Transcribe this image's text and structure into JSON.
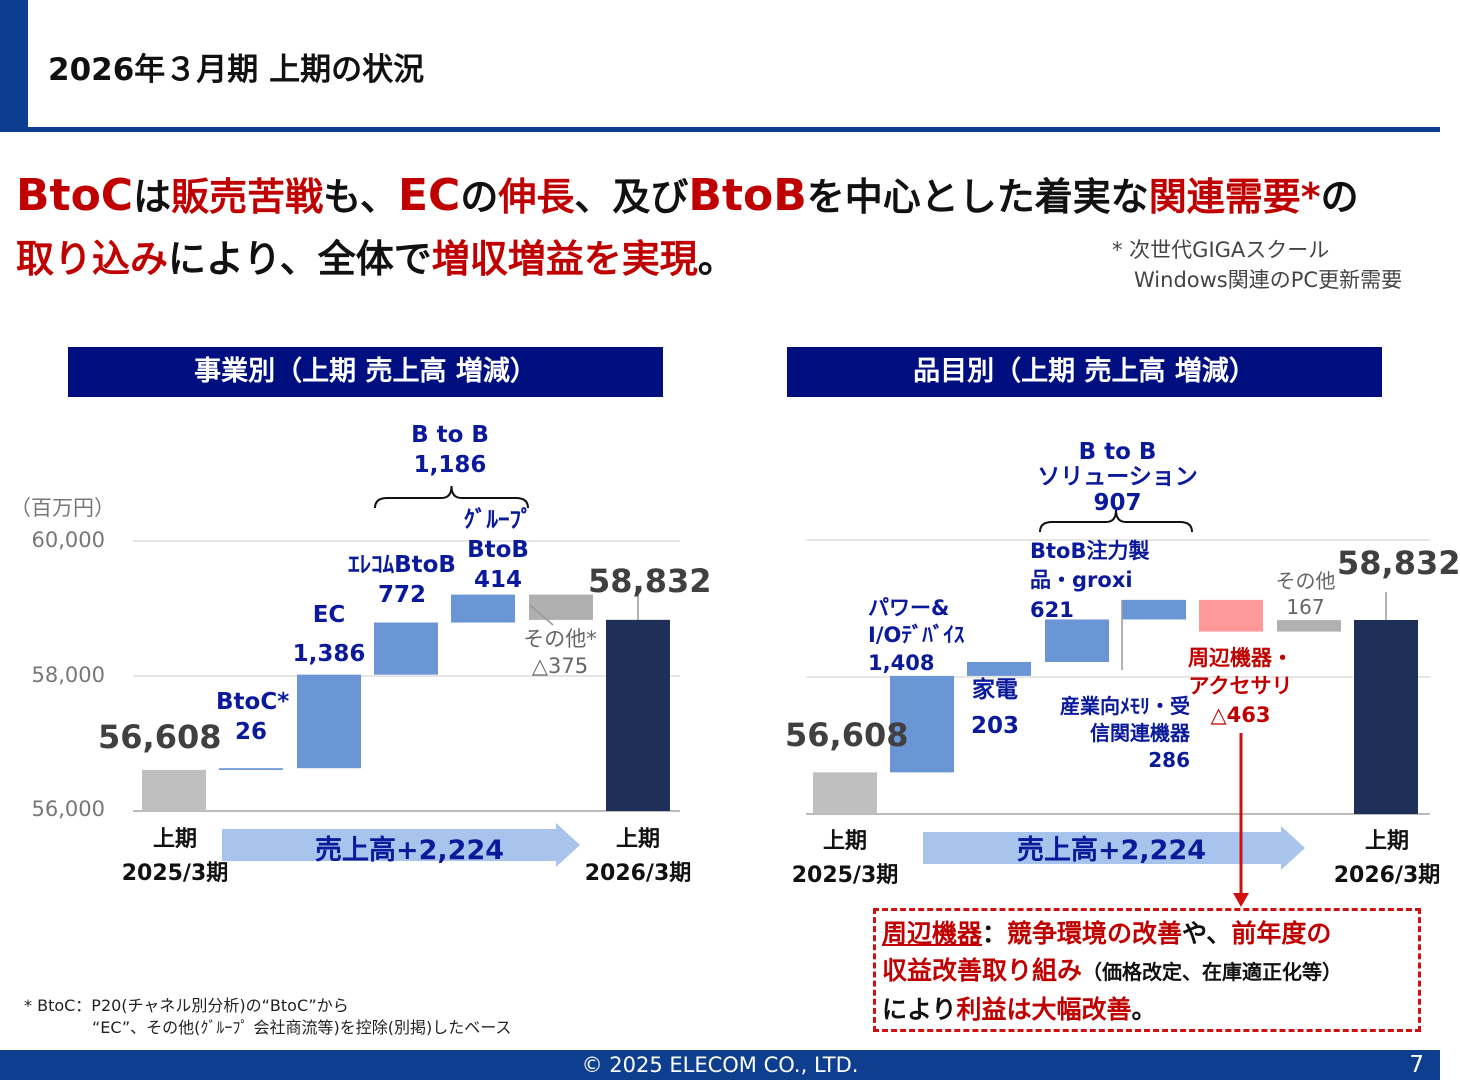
{
  "header": {
    "title": "2026年３月期 上期の状況"
  },
  "headline": {
    "l1": [
      "BtoC",
      "は",
      "販売苦戦",
      "も、",
      "EC",
      "の",
      "伸長",
      "、及び",
      "BtoB",
      "を中心とした着実な",
      "関連需要*",
      "の"
    ],
    "l2": [
      "取り込み",
      "により、全体で",
      "増収増益を実現",
      "。"
    ],
    "note1": "* 次世代GIGAスクール",
    "note2": "Windows関連のPC更新需要"
  },
  "sections": {
    "left": "事業別（上期 売上高 増減）",
    "right": "品目別（上期 売上高 増減）"
  },
  "colors": {
    "navy": "#000f80",
    "increase": "#6b96d6",
    "decrease": "#ff9999",
    "other": "#b0b0b0",
    "total_start": "#bfbfbf",
    "total_end": "#1f3058",
    "arrow": "#a9c4ec",
    "red": "#c00000"
  },
  "chart_data": [
    {
      "type": "waterfall",
      "unit_label": "（百万円）",
      "ylim": [
        56000,
        60000
      ],
      "yticks": [
        "56,000",
        "58,000",
        "60,000"
      ],
      "grid": true,
      "steps": [
        {
          "label": "上期 2025/3期",
          "value": 56608,
          "kind": "total",
          "value_label": "56,608"
        },
        {
          "label": "BtoC*",
          "value": 26,
          "kind": "increase",
          "value_label": "26"
        },
        {
          "label": "EC",
          "value": 1386,
          "kind": "increase",
          "value_label": "1,386"
        },
        {
          "label": "ｴﾚｺﾑBtoB",
          "value": 772,
          "kind": "increase",
          "value_label": "772"
        },
        {
          "label": "ｸﾞﾙｰﾌﾟ BtoB",
          "value": 414,
          "kind": "increase",
          "value_label": "414"
        },
        {
          "label": "その他*",
          "value": -375,
          "kind": "other",
          "value_label": "△375"
        },
        {
          "label": "上期 2026/3期",
          "value": 58832,
          "kind": "total",
          "value_label": "58,832"
        }
      ],
      "bracket": {
        "label": "B to B",
        "value": "1,186"
      },
      "arrow": "売上高+2,224",
      "x_start": [
        "上期",
        "2025/3期"
      ],
      "x_end": [
        "上期",
        "2026/3期"
      ]
    },
    {
      "type": "waterfall",
      "ylim": [
        56000,
        60000
      ],
      "grid": true,
      "steps": [
        {
          "label": "上期 2025/3期",
          "value": 56608,
          "kind": "total",
          "value_label": "56,608"
        },
        {
          "label": "パワー& I/Oﾃﾞﾊﾞｲｽ",
          "value": 1408,
          "kind": "increase",
          "value_label": "1,408"
        },
        {
          "label": "家電",
          "value": 203,
          "kind": "increase",
          "value_label": "203"
        },
        {
          "label": "BtoB注力製品・groxi",
          "value": 621,
          "kind": "increase",
          "value_label": "621"
        },
        {
          "label": "産業向ﾒﾓﾘ・受信関連機器",
          "value": 286,
          "kind": "increase",
          "value_label": "286"
        },
        {
          "label": "周辺機器・アクセサリ",
          "value": -463,
          "kind": "decrease",
          "value_label": "△463"
        },
        {
          "label": "その他",
          "value": 167,
          "kind": "other",
          "value_label": "167"
        },
        {
          "label": "上期 2026/3期",
          "value": 58832,
          "kind": "total",
          "value_label": "58,832"
        }
      ],
      "bracket": {
        "label": "B to B",
        "sub": "ソリューション",
        "value": "907"
      },
      "arrow": "売上高+2,224",
      "x_start": [
        "上期",
        "2025/3期"
      ],
      "x_end": [
        "上期",
        "2026/3期"
      ]
    }
  ],
  "callout": {
    "p1": "周辺機器",
    "p2": "：",
    "p3": "競争環境の改善",
    "p4": "や、",
    "p5": "前年度の",
    "p6": "収益改善取り組み",
    "p7": "（価格改定、在庫適正化等）",
    "p8": "により",
    "p9": "利益は大幅改善",
    "p10": "。"
  },
  "footnote": {
    "l1": "* BtoC：P20(チャネル別分析)の“BtoC”から",
    "l2": "“EC”、その他(ｸﾞﾙｰﾌﾟ 会社商流等)を控除(別掲)したベース"
  },
  "footer": {
    "copyright": "© 2025 ELECOM CO., LTD.",
    "page": "7"
  }
}
